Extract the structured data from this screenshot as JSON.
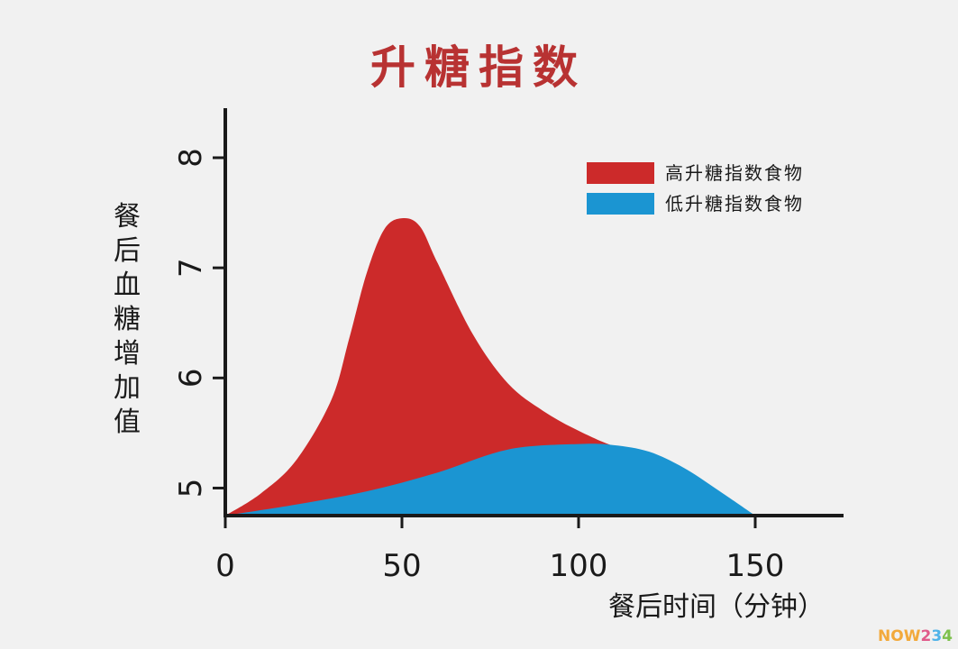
{
  "chart_data": {
    "type": "area",
    "title": "升糖指数",
    "xlabel": "餐后时间（分钟）",
    "ylabel": "餐后血糖增加值",
    "xlim": [
      0,
      175
    ],
    "ylim": [
      4.75,
      8.45
    ],
    "xticks": [
      "0",
      "50",
      "100",
      "150"
    ],
    "xtick_values": [
      0,
      50,
      100,
      150
    ],
    "yticks": [
      "5",
      "6",
      "7",
      "8"
    ],
    "ytick_values": [
      5,
      6,
      7,
      8
    ],
    "legend_position": "top-right",
    "series": [
      {
        "name": "高升糖指数食物",
        "color": "#cc2a2a",
        "x": [
          0,
          10,
          20,
          30,
          35,
          40,
          45,
          50,
          55,
          60,
          70,
          80,
          90,
          100,
          110,
          116
        ],
        "y": [
          4.75,
          4.95,
          5.25,
          5.8,
          6.35,
          6.95,
          7.35,
          7.45,
          7.38,
          7.05,
          6.4,
          5.95,
          5.7,
          5.52,
          5.38,
          5.35
        ]
      },
      {
        "name": "低升糖指数食物",
        "color": "#1b95d2",
        "x": [
          0,
          20,
          40,
          60,
          80,
          100,
          110,
          120,
          130,
          140,
          150
        ],
        "y": [
          4.75,
          4.85,
          4.97,
          5.14,
          5.35,
          5.4,
          5.39,
          5.33,
          5.18,
          4.97,
          4.75
        ]
      }
    ]
  },
  "watermark": "NOW234"
}
